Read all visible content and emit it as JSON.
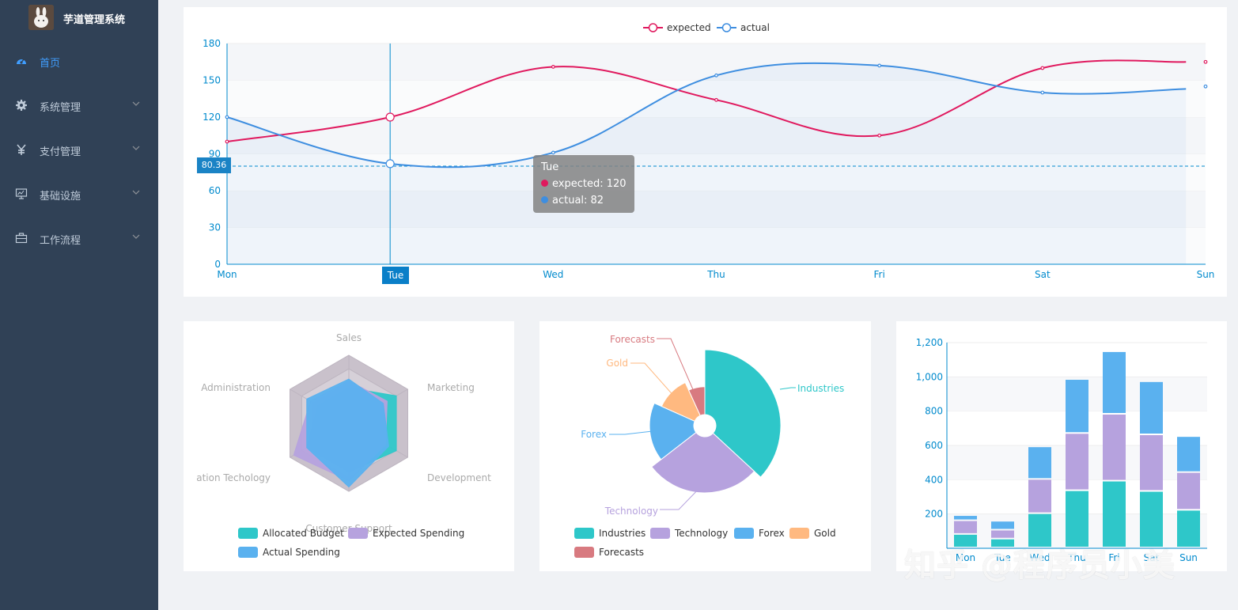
{
  "app": {
    "title": "芋道管理系统",
    "sidebar": [
      {
        "label": "首页",
        "icon": "dashboard-icon",
        "active": true
      },
      {
        "label": "系统管理",
        "icon": "gear-icon",
        "active": false
      },
      {
        "label": "支付管理",
        "icon": "yen-icon",
        "active": false
      },
      {
        "label": "基础设施",
        "icon": "monitor-icon",
        "active": false
      },
      {
        "label": "工作流程",
        "icon": "briefcase-icon",
        "active": false
      }
    ]
  },
  "colors": {
    "sidebar_bg": "#304156",
    "active": "#409eff",
    "expected": "#e0195e",
    "actual": "#3e8ee0",
    "teal": "#2ec7c9",
    "purple": "#b6a2de",
    "blue": "#5ab1ef",
    "orange": "#ffb980",
    "red": "#d87a80"
  },
  "line_tooltip": {
    "title": "Tue",
    "expected": "expected: 120",
    "actual": "actual: 82",
    "y_pointer": "80.36",
    "x_pointer": "Tue"
  },
  "watermark": "知乎 @程序员小美",
  "chart_data": [
    {
      "type": "line",
      "legend": [
        "expected",
        "actual"
      ],
      "categories": [
        "Mon",
        "Tue",
        "Wed",
        "Thu",
        "Fri",
        "Sat",
        "Sun"
      ],
      "ylim": [
        0,
        180
      ],
      "yticks": [
        0,
        30,
        60,
        90,
        120,
        150,
        180
      ],
      "series": [
        {
          "name": "expected",
          "values": [
            100,
            120,
            161,
            134,
            105,
            160,
            165
          ]
        },
        {
          "name": "actual",
          "values": [
            120,
            82,
            91,
            154,
            162,
            140,
            145
          ]
        }
      ]
    },
    {
      "type": "radar",
      "indicators": [
        "Sales",
        "Marketing",
        "Development",
        "Customer Support",
        "Information Techology",
        "Administration"
      ],
      "series": [
        {
          "name": "Allocated Budget",
          "values": [
            0.4,
            0.62,
            0.62,
            0.55,
            0.55,
            0.4
          ]
        },
        {
          "name": "Expected Spending",
          "values": [
            0.48,
            0.5,
            0.48,
            0.65,
            0.72,
            0.5
          ]
        },
        {
          "name": "Actual Spending",
          "values": [
            0.5,
            0.45,
            0.52,
            0.72,
            0.55,
            0.55
          ]
        }
      ]
    },
    {
      "type": "pie",
      "variant": "rose",
      "labels": [
        "Industries",
        "Technology",
        "Forex",
        "Gold",
        "Forecasts"
      ],
      "values": [
        320,
        240,
        149,
        100,
        59
      ],
      "legend": [
        "Industries",
        "Technology",
        "Forex",
        "Gold",
        "Forecasts"
      ]
    },
    {
      "type": "bar",
      "stacked": true,
      "categories": [
        "Mon",
        "Tue",
        "Wed",
        "Thu",
        "Fri",
        "Sat",
        "Sun"
      ],
      "ylim": [
        0,
        1200
      ],
      "yticks": [
        "200",
        "400",
        "600",
        "800",
        "1,000",
        "1,200"
      ],
      "series": [
        {
          "name": "Allocated Budget",
          "values": [
            79,
            52,
            200,
            334,
            390,
            330,
            220
          ]
        },
        {
          "name": "Expected Spending",
          "values": [
            80,
            52,
            200,
            334,
            390,
            330,
            220
          ]
        },
        {
          "name": "Actual Spending",
          "values": [
            30,
            52,
            190,
            315,
            365,
            310,
            210
          ]
        }
      ]
    }
  ]
}
